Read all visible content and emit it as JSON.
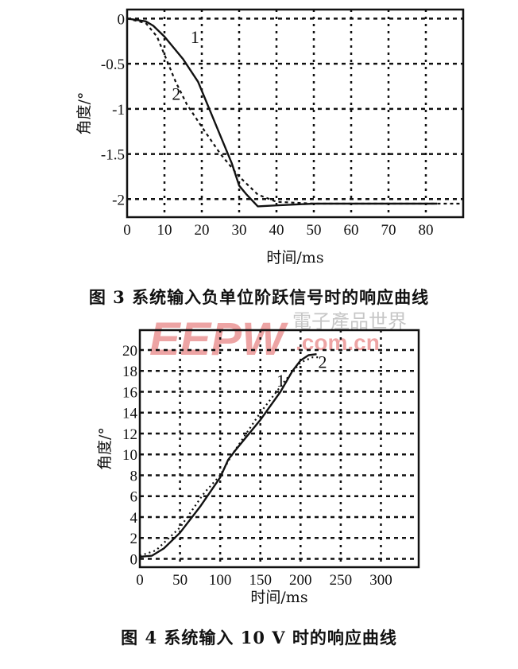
{
  "chart_data": [
    {
      "type": "line",
      "title": "",
      "caption": "图 3   系统输入负单位阶跃信号时的响应曲线",
      "xlabel": "时间/ms",
      "ylabel": "角度/°",
      "xlim": [
        0,
        90
      ],
      "ylim": [
        -2.2,
        0.1
      ],
      "xticks": [
        0,
        10,
        20,
        30,
        40,
        50,
        60,
        70,
        80
      ],
      "xtick_labels": [
        "0",
        "10",
        "20",
        "30",
        "40",
        "50",
        "60",
        "70",
        "80"
      ],
      "yticks": [
        0,
        -0.5,
        -1,
        -1.5,
        -2
      ],
      "ytick_labels": [
        "0",
        "-0.5",
        "-1",
        "-1.5",
        "-2"
      ],
      "grid": true,
      "series": [
        {
          "name": "1",
          "style": "solid",
          "color": "#111111",
          "x": [
            0,
            5,
            7,
            10,
            15,
            19,
            22,
            25,
            28,
            30,
            32,
            35,
            40,
            50,
            83
          ],
          "y": [
            0,
            -0.03,
            -0.08,
            -0.2,
            -0.45,
            -0.7,
            -1.0,
            -1.3,
            -1.6,
            -1.85,
            -1.95,
            -2.08,
            -2.07,
            -2.05,
            -2.05
          ]
        },
        {
          "name": "2",
          "style": "dashed",
          "color": "#111111",
          "x": [
            0,
            5,
            8,
            10,
            11,
            13,
            16,
            20,
            25,
            30,
            35,
            40,
            50,
            90
          ],
          "y": [
            0,
            -0.05,
            -0.2,
            -0.4,
            -0.5,
            -0.7,
            -0.95,
            -1.2,
            -1.5,
            -1.75,
            -1.95,
            -2.03,
            -2.05,
            -2.05
          ]
        }
      ],
      "annotations": [
        {
          "text": "1",
          "x": 17,
          "y": -0.27
        },
        {
          "text": "2",
          "x": 12,
          "y": -0.9
        }
      ]
    },
    {
      "type": "line",
      "title": "",
      "caption": "图 4   系统输入 10 V 时的响应曲线",
      "xlabel": "时间/ms",
      "ylabel": "角度/°",
      "xlim": [
        0,
        347
      ],
      "ylim": [
        -0.8,
        21.9
      ],
      "xticks": [
        0,
        50,
        100,
        150,
        200,
        250,
        300
      ],
      "xtick_labels": [
        "0",
        "50",
        "100",
        "150",
        "200",
        "250",
        "300"
      ],
      "yticks": [
        0,
        2,
        4,
        6,
        8,
        10,
        12,
        14,
        16,
        18,
        20
      ],
      "ytick_labels": [
        "0",
        "2",
        "4",
        "6",
        "8",
        "10",
        "12",
        "14",
        "16",
        "18",
        "20"
      ],
      "grid": true,
      "series": [
        {
          "name": "1",
          "style": "solid",
          "color": "#111111",
          "x": [
            0,
            15,
            30,
            50,
            75,
            100,
            110,
            120,
            150,
            175,
            190,
            200,
            210,
            220
          ],
          "y": [
            0.2,
            0.3,
            1,
            2.5,
            5,
            7.8,
            9.5,
            10.5,
            13.3,
            16,
            18,
            19,
            19.5,
            19.6
          ]
        },
        {
          "name": "2",
          "style": "dotted",
          "color": "#111111",
          "x": [
            0,
            20,
            50,
            80,
            100,
            115,
            150,
            180,
            200,
            215,
            225
          ],
          "y": [
            0.3,
            0.8,
            3,
            6.3,
            8,
            10,
            14,
            17,
            18.8,
            19.3,
            19.3
          ]
        }
      ],
      "annotations": [
        {
          "text": "1",
          "x": 170,
          "y": 16.5
        },
        {
          "text": "2",
          "x": 222,
          "y": 18.3
        }
      ]
    }
  ],
  "watermark": {
    "logo": "EEPW",
    "chinese": "電子產品世界",
    "domain": ".com.cn",
    "color": "#e05a5a"
  }
}
